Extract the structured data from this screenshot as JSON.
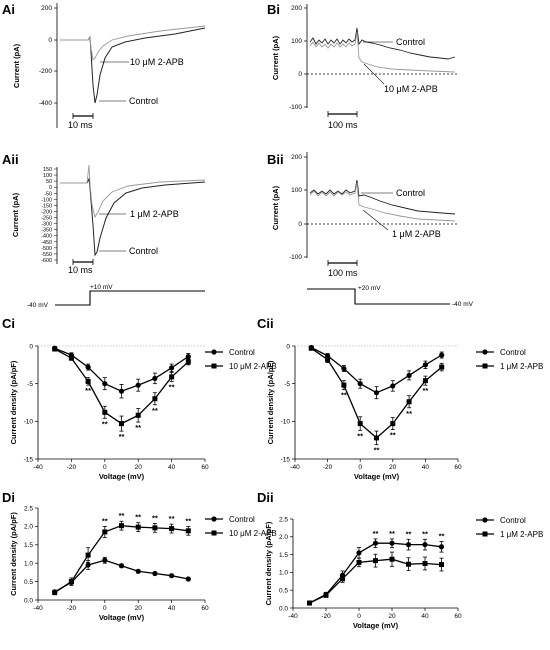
{
  "traces": [
    {
      "label": "Ai",
      "ylabel": "Current (pA)",
      "yticks": [
        "200",
        "0",
        "-200",
        "-400"
      ],
      "scale_label": "10 ms",
      "annotations": [
        "10 μM 2-APB",
        "Control"
      ]
    },
    {
      "label": "Bi",
      "ylabel": "Current (pA)",
      "yticks": [
        "200",
        "100",
        "0",
        "-100"
      ],
      "scale_label": "100 ms",
      "annotations": [
        "Control",
        "10 μM 2-APB"
      ]
    },
    {
      "label": "Aii",
      "ylabel": "Current (pA)",
      "yticks": [
        "150",
        "100",
        "50",
        "0",
        "-50",
        "-100",
        "-150",
        "-200",
        "-250",
        "-300",
        "-350",
        "-400",
        "-450",
        "-500",
        "-550",
        "-600"
      ],
      "scale_label": "10 ms",
      "annotations": [
        "1 μM 2-APB",
        "Control"
      ]
    },
    {
      "label": "Bii",
      "ylabel": "Current (pA)",
      "yticks": [
        "200",
        "100",
        "0",
        "-100"
      ],
      "scale_label": "100 ms",
      "annotations": [
        "Control",
        "1 μM 2-APB"
      ]
    }
  ],
  "protocols": [
    {
      "hold": "-40 mV",
      "step": "+10 mV"
    },
    {
      "step": "+20 mV",
      "hold": "-40 mV"
    }
  ],
  "chart_data": [
    {
      "panel": "Ci",
      "type": "line",
      "xlabel": "Voltage (mV)",
      "ylabel": "Current density (pA/pF)",
      "xlim": [
        -40,
        60
      ],
      "ylim": [
        -15,
        0
      ],
      "xticks": [
        -40,
        -20,
        0,
        20,
        40,
        60
      ],
      "yticks": [
        0,
        -5,
        -10,
        -15
      ],
      "legend": "top-right",
      "x": [
        -30,
        -20,
        -10,
        0,
        10,
        20,
        30,
        40,
        50
      ],
      "series": [
        {
          "name": "Control",
          "marker": "circle",
          "values": [
            -0.3,
            -1.2,
            -2.8,
            -5.0,
            -6.0,
            -5.2,
            -4.3,
            -2.9,
            -1.4
          ],
          "err": [
            0.2,
            0.3,
            0.4,
            0.8,
            0.9,
            0.8,
            0.7,
            0.5,
            0.4
          ]
        },
        {
          "name": "10 μM 2-APB",
          "marker": "square",
          "values": [
            -0.4,
            -1.6,
            -4.7,
            -8.8,
            -10.3,
            -9.2,
            -7.0,
            -4.1,
            -2.1
          ],
          "err": [
            0.2,
            0.3,
            0.5,
            0.8,
            1.0,
            0.9,
            0.8,
            0.6,
            0.4
          ]
        }
      ],
      "significance": [
        {
          "x": -10,
          "text": "**"
        },
        {
          "x": 0,
          "text": "**"
        },
        {
          "x": 10,
          "text": "**"
        },
        {
          "x": 20,
          "text": "**"
        },
        {
          "x": 30,
          "text": "**"
        },
        {
          "x": 40,
          "text": "**"
        }
      ]
    },
    {
      "panel": "Cii",
      "type": "line",
      "xlabel": "Voltage (mV)",
      "ylabel": "Current density (pA/pF)",
      "xlim": [
        -40,
        60
      ],
      "ylim": [
        -15,
        0
      ],
      "xticks": [
        -40,
        -20,
        0,
        20,
        40,
        60
      ],
      "yticks": [
        0,
        -5,
        -10,
        -15
      ],
      "legend": "top-right",
      "x": [
        -30,
        -20,
        -10,
        0,
        10,
        20,
        30,
        40,
        50
      ],
      "series": [
        {
          "name": "Control",
          "marker": "circle",
          "values": [
            -0.2,
            -1.3,
            -3.0,
            -5.0,
            -6.2,
            -5.3,
            -3.9,
            -2.5,
            -1.2
          ],
          "err": [
            0.2,
            0.3,
            0.4,
            0.6,
            0.8,
            0.7,
            0.6,
            0.5,
            0.4
          ]
        },
        {
          "name": "1 μM 2-APB",
          "marker": "square",
          "values": [
            -0.3,
            -1.8,
            -5.2,
            -10.3,
            -12.2,
            -10.3,
            -7.4,
            -4.6,
            -2.8
          ],
          "err": [
            0.2,
            0.4,
            0.6,
            0.9,
            0.9,
            0.8,
            0.8,
            0.6,
            0.5
          ]
        }
      ],
      "significance": [
        {
          "x": -10,
          "text": "**"
        },
        {
          "x": 0,
          "text": "**"
        },
        {
          "x": 10,
          "text": "**"
        },
        {
          "x": 20,
          "text": "**"
        },
        {
          "x": 30,
          "text": "**"
        },
        {
          "x": 40,
          "text": "**"
        }
      ]
    },
    {
      "panel": "Di",
      "type": "line",
      "xlabel": "Voltage (mV)",
      "ylabel": "Current density (pA/pF)",
      "xlim": [
        -40,
        60
      ],
      "ylim": [
        0,
        2.5
      ],
      "xticks": [
        -40,
        -20,
        0,
        20,
        40,
        60
      ],
      "yticks": [
        0.0,
        0.5,
        1.0,
        1.5,
        2.0,
        2.5
      ],
      "legend": "top-right",
      "x": [
        -30,
        -20,
        -10,
        0,
        10,
        20,
        30,
        40,
        50
      ],
      "series": [
        {
          "name": "Control",
          "marker": "circle",
          "values": [
            0.22,
            0.48,
            0.95,
            1.08,
            0.93,
            0.78,
            0.72,
            0.66,
            0.57
          ],
          "err": [
            0.05,
            0.08,
            0.12,
            0.08,
            0.05,
            0.04,
            0.04,
            0.04,
            0.04
          ]
        },
        {
          "name": "10 μM 2-APB",
          "marker": "square",
          "values": [
            0.2,
            0.5,
            1.22,
            1.85,
            2.02,
            1.98,
            1.96,
            1.94,
            1.88
          ],
          "err": [
            0.05,
            0.1,
            0.2,
            0.15,
            0.12,
            0.12,
            0.12,
            0.12,
            0.12
          ]
        }
      ],
      "significance": [
        {
          "x": 0,
          "text": "**"
        },
        {
          "x": 10,
          "text": "**"
        },
        {
          "x": 20,
          "text": "**"
        },
        {
          "x": 30,
          "text": "**"
        },
        {
          "x": 40,
          "text": "**"
        },
        {
          "x": 50,
          "text": "**"
        }
      ]
    },
    {
      "panel": "Dii",
      "type": "line",
      "xlabel": "Voltage (mV)",
      "ylabel": "Current density (pA/pF)",
      "xlim": [
        -40,
        60
      ],
      "ylim": [
        0,
        2.5
      ],
      "xticks": [
        -40,
        -20,
        0,
        20,
        40,
        60
      ],
      "yticks": [
        0.0,
        0.5,
        1.0,
        1.5,
        2.0,
        2.5
      ],
      "legend": "top-right",
      "x": [
        -30,
        -20,
        -10,
        0,
        10,
        20,
        30,
        40,
        50
      ],
      "series": [
        {
          "name": "Control",
          "marker": "circle",
          "values": [
            0.14,
            0.38,
            0.92,
            1.55,
            1.82,
            1.82,
            1.78,
            1.78,
            1.72
          ],
          "err": [
            0.03,
            0.06,
            0.12,
            0.15,
            0.12,
            0.12,
            0.15,
            0.15,
            0.15
          ]
        },
        {
          "name": "1 μM 2-APB",
          "marker": "square",
          "values": [
            0.14,
            0.36,
            0.82,
            1.28,
            1.33,
            1.37,
            1.23,
            1.25,
            1.22
          ],
          "err": [
            0.03,
            0.06,
            0.1,
            0.12,
            0.18,
            0.2,
            0.18,
            0.18,
            0.18
          ]
        }
      ],
      "significance": [
        {
          "x": 10,
          "text": "**"
        },
        {
          "x": 20,
          "text": "**"
        },
        {
          "x": 30,
          "text": "**"
        },
        {
          "x": 40,
          "text": "**"
        },
        {
          "x": 50,
          "text": "**"
        }
      ]
    }
  ]
}
